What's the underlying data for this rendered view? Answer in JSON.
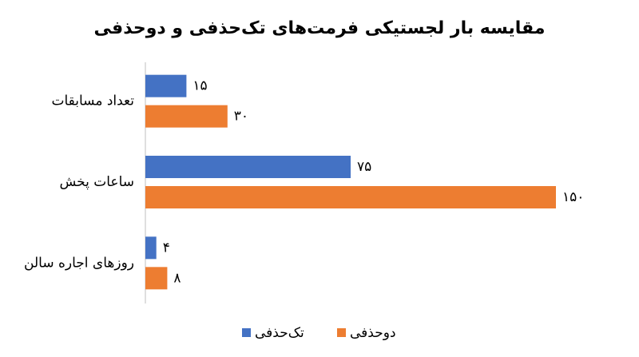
{
  "chart_data": {
    "type": "hbar",
    "title": "مقایسه بار لجستیکی فرمت‌های تک‌حذفی و دوحذفی",
    "categories": [
      "تعداد مسابقات",
      "ساعات پخش",
      "روزهای اجاره سالن"
    ],
    "series": [
      {
        "name": "تک‌حذفی",
        "color": "#4472c4",
        "values": [
          15,
          75,
          4
        ],
        "value_labels": [
          "۱۵",
          "۷۵",
          "۴"
        ]
      },
      {
        "name": "دوحذفی",
        "color": "#ed7d31",
        "values": [
          30,
          150,
          8
        ],
        "value_labels": [
          "۳۰",
          "۱۵۰",
          "۸"
        ]
      }
    ],
    "xlim": [
      0,
      150
    ]
  }
}
